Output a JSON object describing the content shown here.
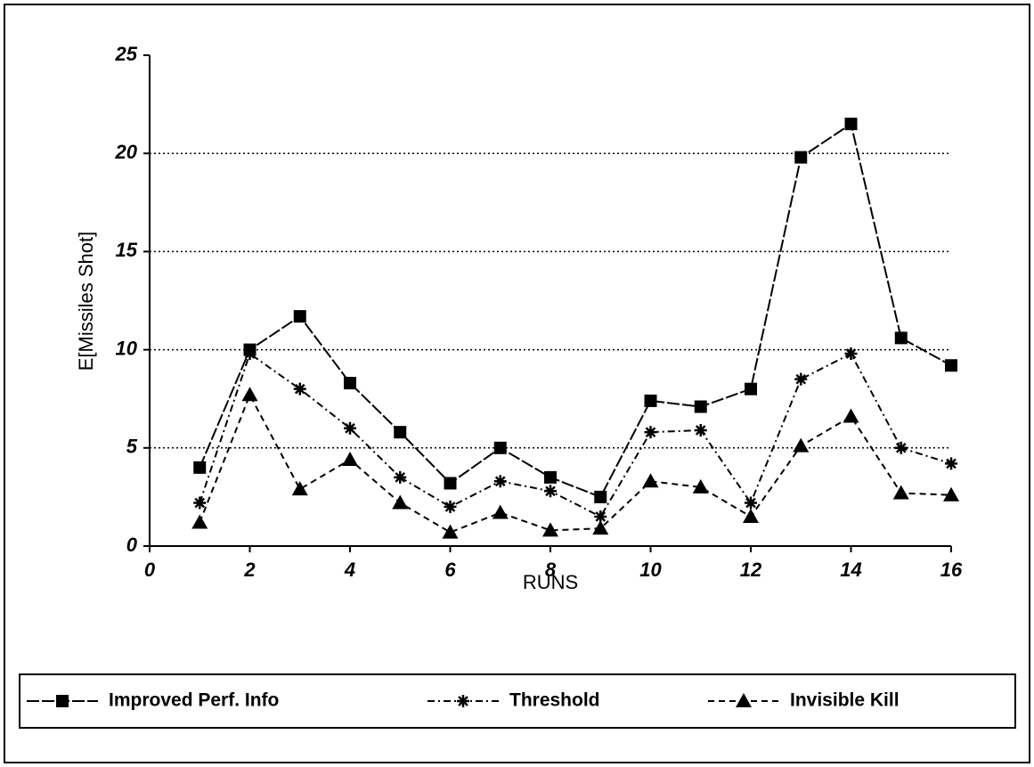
{
  "chart_data": {
    "type": "line",
    "x_label": "RUNS",
    "y_label": "E[Missiles Shot]",
    "x": [
      1,
      2,
      3,
      4,
      5,
      6,
      7,
      8,
      9,
      10,
      11,
      12,
      13,
      14,
      15,
      16
    ],
    "series": [
      {
        "name": "Improved Perf. Info",
        "color": "#000000",
        "marker": "square",
        "dash": "14 3",
        "values": [
          4.0,
          10.0,
          11.7,
          8.3,
          5.8,
          3.2,
          5.0,
          3.5,
          2.5,
          7.4,
          7.1,
          8.0,
          19.8,
          21.5,
          10.6,
          9.2
        ]
      },
      {
        "name": "Threshold",
        "color": "#000000",
        "marker": "star",
        "dash": "8 4 2 4",
        "values": [
          2.2,
          9.8,
          8.0,
          6.0,
          3.5,
          2.0,
          3.3,
          2.8,
          1.5,
          5.8,
          5.9,
          2.2,
          8.5,
          9.8,
          5.0,
          4.2
        ]
      },
      {
        "name": "Invisible Kill",
        "color": "#000000",
        "marker": "triangle",
        "dash": "7 5",
        "values": [
          1.2,
          7.7,
          2.9,
          4.4,
          2.2,
          0.7,
          1.7,
          0.8,
          0.9,
          3.3,
          3.0,
          1.5,
          5.1,
          6.6,
          2.7,
          2.6
        ]
      }
    ],
    "xlim": [
      0,
      16
    ],
    "xticks": [
      0,
      2,
      4,
      6,
      8,
      10,
      12,
      14,
      16
    ],
    "ylim": [
      0,
      25
    ],
    "yticks": [
      0,
      5,
      10,
      15,
      20,
      25
    ],
    "grid": true,
    "legend": "bottom"
  }
}
